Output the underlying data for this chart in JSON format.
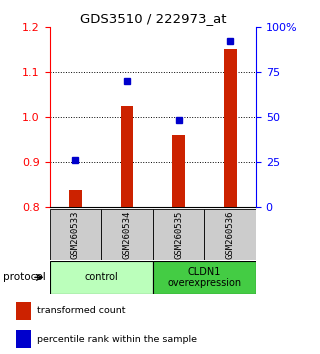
{
  "title": "GDS3510 / 222973_at",
  "samples": [
    "GSM260533",
    "GSM260534",
    "GSM260535",
    "GSM260536"
  ],
  "red_values": [
    0.838,
    1.023,
    0.96,
    1.15
  ],
  "blue_values": [
    26,
    70,
    48,
    92
  ],
  "ylim_left": [
    0.8,
    1.2
  ],
  "ylim_right": [
    0,
    100
  ],
  "yticks_left": [
    0.8,
    0.9,
    1.0,
    1.1,
    1.2
  ],
  "yticks_right": [
    0,
    25,
    50,
    75,
    100
  ],
  "ytick_labels_right": [
    "0",
    "25",
    "50",
    "75",
    "100%"
  ],
  "bar_color": "#cc2200",
  "dot_color": "#0000cc",
  "bar_bottom": 0.8,
  "groups": [
    {
      "label": "control",
      "samples": [
        0,
        1
      ],
      "color": "#bbffbb"
    },
    {
      "label": "CLDN1\noverexpression",
      "samples": [
        2,
        3
      ],
      "color": "#44cc44"
    }
  ],
  "protocol_label": "protocol",
  "legend": [
    {
      "color": "#cc2200",
      "label": "transformed count"
    },
    {
      "color": "#0000cc",
      "label": "percentile rank within the sample"
    }
  ],
  "sample_box_color": "#cccccc",
  "background_color": "#ffffff"
}
